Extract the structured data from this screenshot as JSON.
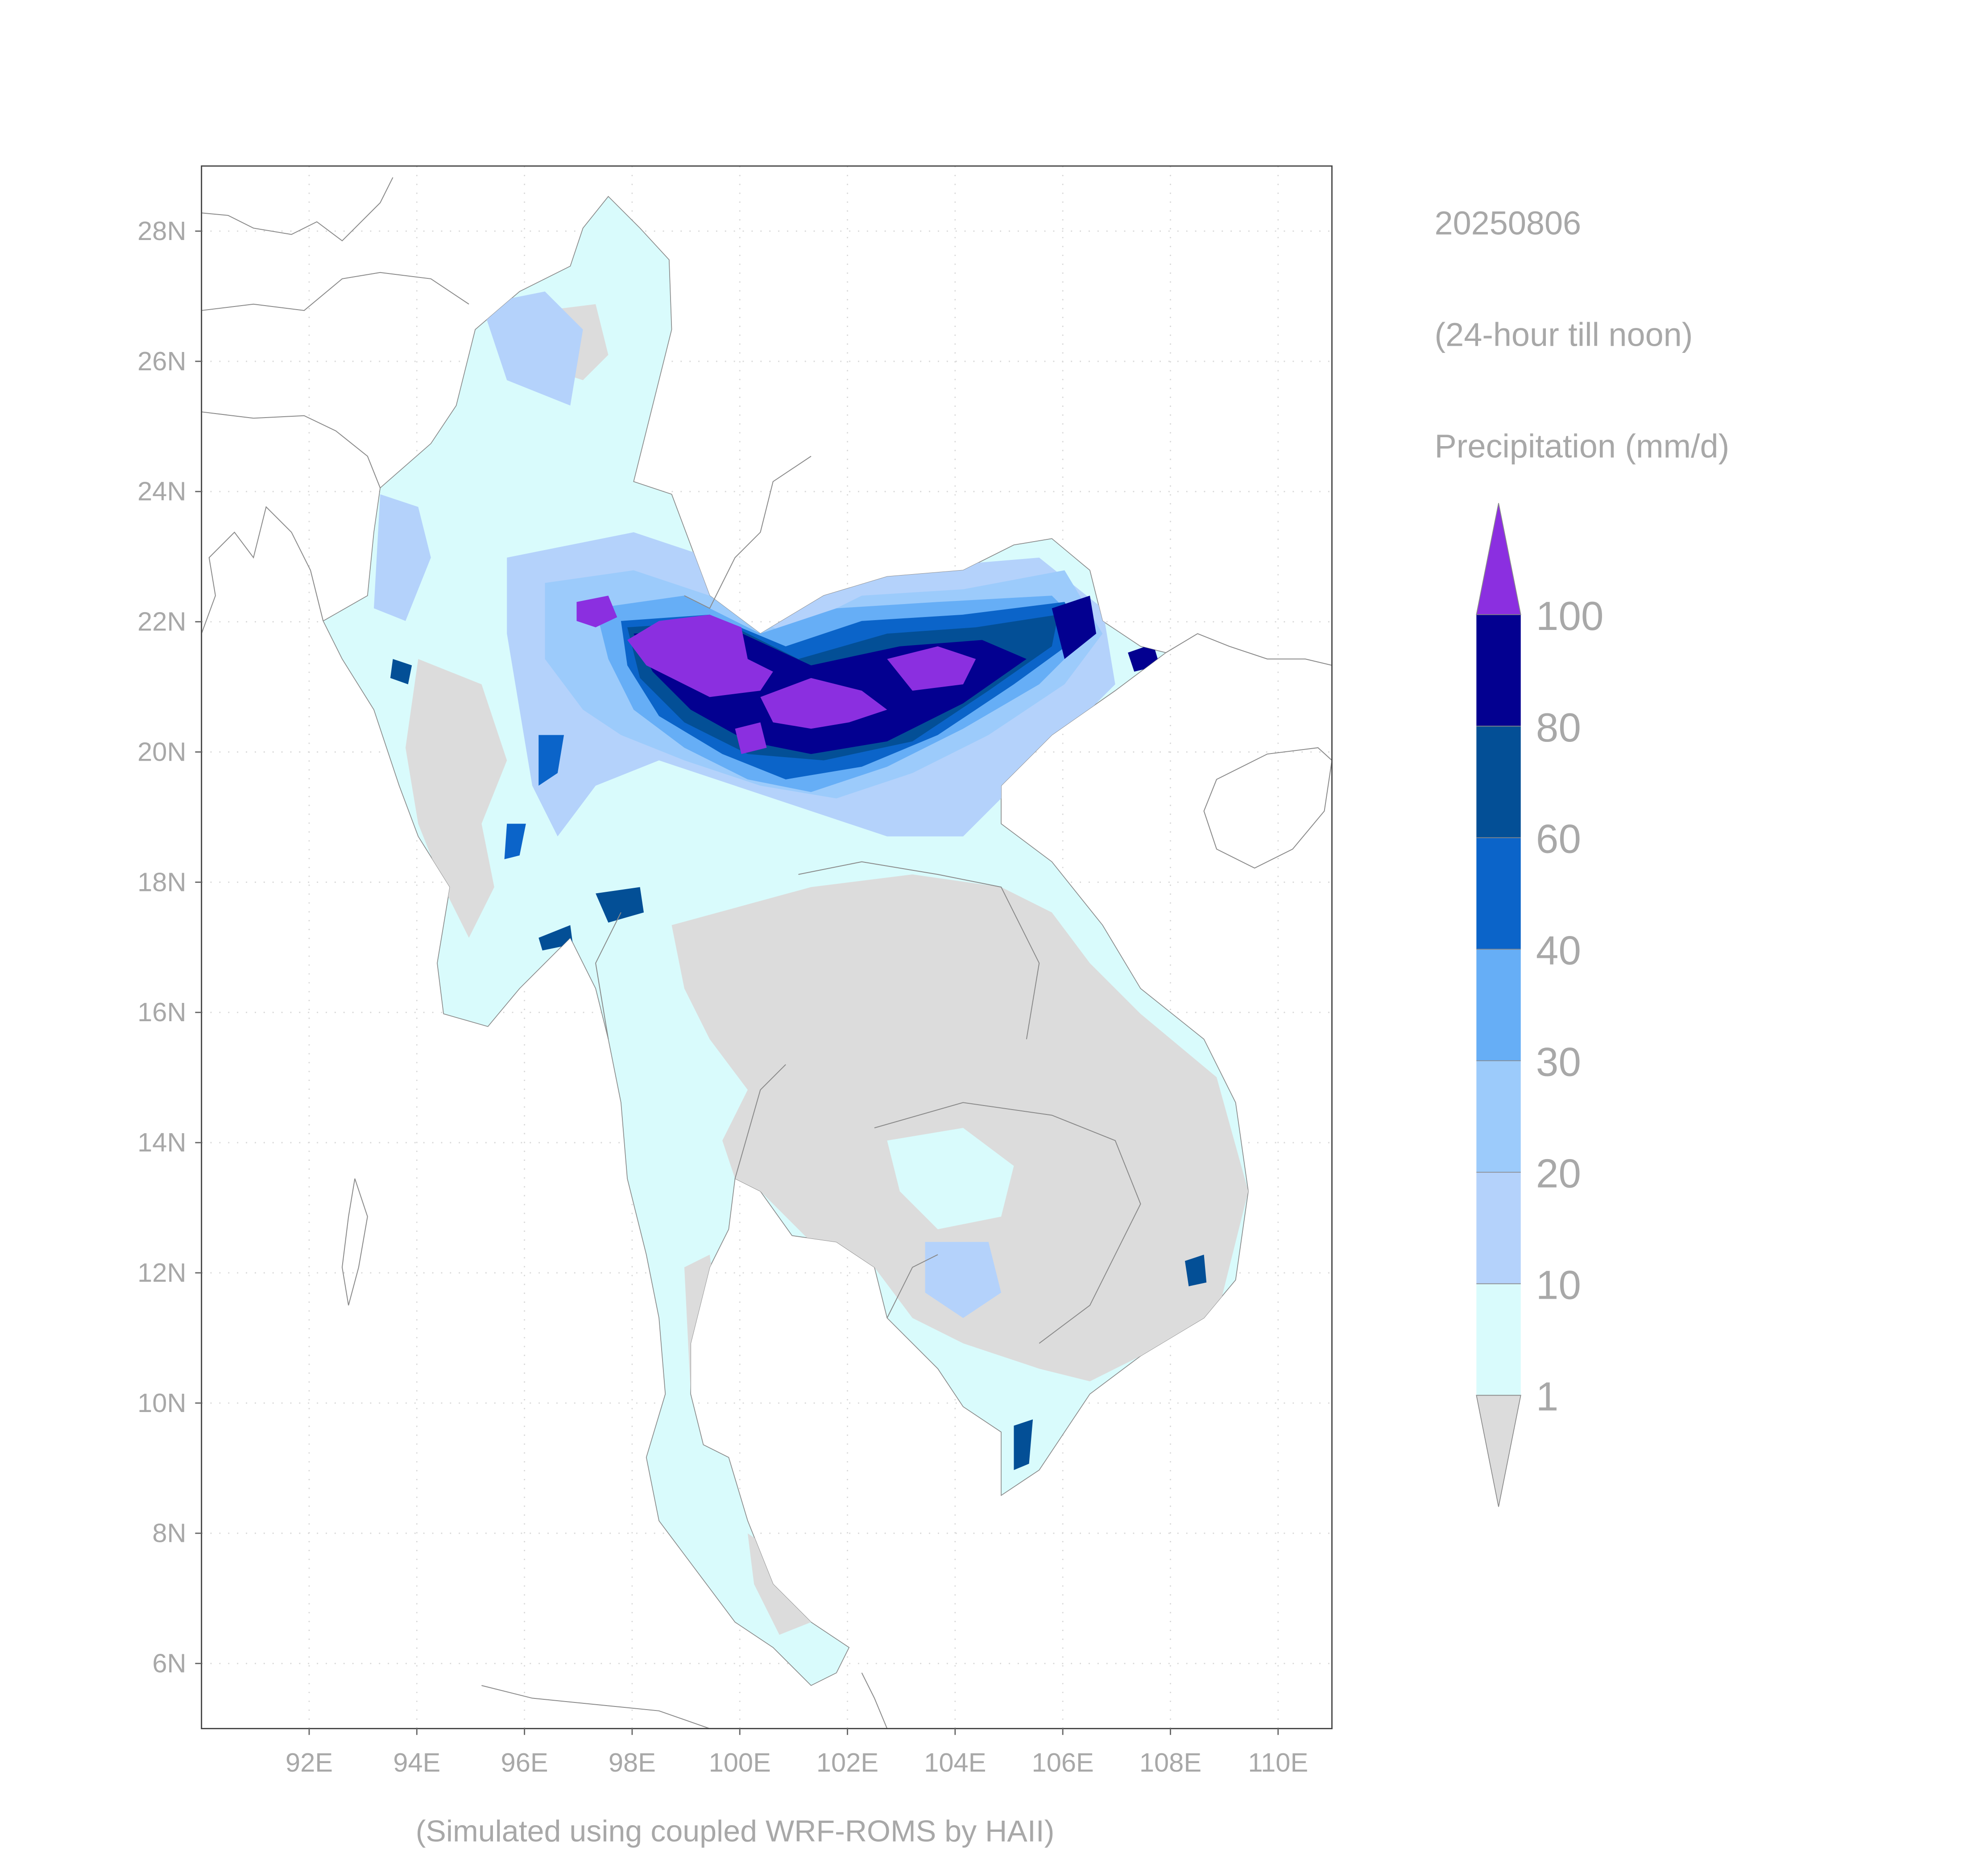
{
  "map": {
    "date": "20250806",
    "period": "(24-hour till noon)",
    "variable": "Precipitation (mm/d)",
    "credit": "(Simulated using coupled WRF-ROMS by HAII)",
    "xlim": [
      90,
      111
    ],
    "ylim": [
      5,
      29
    ],
    "xticks": [
      {
        "value": 92,
        "label": "92E"
      },
      {
        "value": 94,
        "label": "94E"
      },
      {
        "value": 96,
        "label": "96E"
      },
      {
        "value": 98,
        "label": "98E"
      },
      {
        "value": 100,
        "label": "100E"
      },
      {
        "value": 102,
        "label": "102E"
      },
      {
        "value": 104,
        "label": "104E"
      },
      {
        "value": 106,
        "label": "106E"
      },
      {
        "value": 108,
        "label": "108E"
      },
      {
        "value": 110,
        "label": "110E"
      }
    ],
    "yticks": [
      {
        "value": 6,
        "label": "6N"
      },
      {
        "value": 8,
        "label": "8N"
      },
      {
        "value": 10,
        "label": "10N"
      },
      {
        "value": 12,
        "label": "12N"
      },
      {
        "value": 14,
        "label": "14N"
      },
      {
        "value": 16,
        "label": "16N"
      },
      {
        "value": 18,
        "label": "18N"
      },
      {
        "value": 20,
        "label": "20N"
      },
      {
        "value": 22,
        "label": "22N"
      },
      {
        "value": 24,
        "label": "24N"
      },
      {
        "value": 26,
        "label": "26N"
      },
      {
        "value": 28,
        "label": "28N"
      }
    ],
    "grid": true,
    "colorbar": {
      "levels": [
        1,
        10,
        20,
        30,
        40,
        60,
        80,
        100
      ],
      "colors": [
        "#dcdcdc",
        "#d9fbfc",
        "#b4d2fb",
        "#9ccbfb",
        "#66aef6",
        "#0b64c9",
        "#034f96",
        "#030090",
        "#8b2fe0"
      ]
    }
  }
}
